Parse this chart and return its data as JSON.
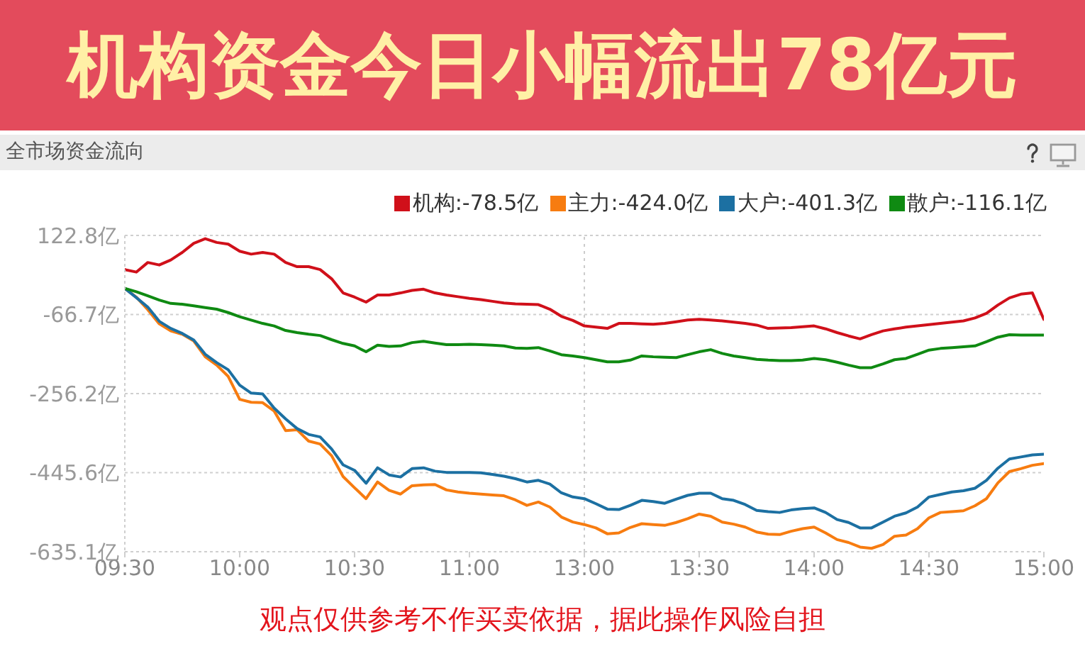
{
  "chart_data": {
    "type": "line",
    "title": "机构资金今日小幅流出78亿元",
    "subtitle": "全市场资金流向",
    "annotations": [
      "观点仅供参考不作买卖依据，据此操作风险自担"
    ],
    "categories": [
      "09:30",
      null,
      null,
      null,
      null,
      null,
      null,
      null,
      null,
      null,
      "10:00",
      null,
      null,
      null,
      null,
      null,
      null,
      null,
      null,
      null,
      "10:30",
      null,
      null,
      null,
      null,
      null,
      null,
      null,
      null,
      null,
      "11:00",
      null,
      null,
      null,
      null,
      null,
      null,
      null,
      null,
      null,
      "13:00",
      null,
      null,
      null,
      null,
      null,
      null,
      null,
      null,
      null,
      "13:30",
      null,
      null,
      null,
      null,
      null,
      null,
      null,
      null,
      null,
      "14:00",
      null,
      null,
      null,
      null,
      null,
      null,
      null,
      null,
      null,
      "14:30",
      null,
      null,
      null,
      null,
      null,
      null,
      null,
      null,
      null,
      "15:00"
    ],
    "series": [
      {
        "name": "机构:-78.5亿",
        "color": "#d0101a",
        "values": [
          41,
          35,
          58,
          52,
          64,
          82,
          104,
          115,
          106,
          102,
          85,
          78,
          82,
          78,
          58,
          48,
          48,
          41,
          19,
          -15,
          -25,
          -37,
          -20,
          -20,
          -15,
          -9,
          -6,
          -15,
          -20,
          -24,
          -28,
          -31,
          -35,
          -39,
          -41,
          -42,
          -43,
          -54,
          -71,
          -81,
          -94,
          -97,
          -100,
          -88,
          -88,
          -89,
          -90,
          -88,
          -84,
          -80,
          -78,
          -80,
          -82,
          -85,
          -88,
          -92,
          -100,
          -99,
          -98,
          -96,
          -94,
          -101,
          -110,
          -118,
          -125,
          -115,
          -106,
          -101,
          -97,
          -94,
          -91,
          -88,
          -85,
          -82,
          -75,
          -64,
          -44,
          -27,
          -18,
          -15,
          -78.5
        ]
      },
      {
        "name": "主力:-424.0亿",
        "color": "#f77c10",
        "values": [
          -4,
          -25,
          -55,
          -89,
          -106,
          -114,
          -130,
          -168,
          -188,
          -215,
          -270,
          -277,
          -278,
          -298,
          -345,
          -343,
          -370,
          -377,
          -405,
          -455,
          -482,
          -508,
          -468,
          -488,
          -497,
          -477,
          -475,
          -474,
          -487,
          -492,
          -495,
          -497,
          -499,
          -501,
          -511,
          -524,
          -516,
          -528,
          -552,
          -564,
          -570,
          -578,
          -592,
          -590,
          -577,
          -568,
          -570,
          -572,
          -565,
          -556,
          -545,
          -550,
          -564,
          -569,
          -576,
          -588,
          -593,
          -594,
          -586,
          -580,
          -576,
          -590,
          -606,
          -613,
          -624,
          -627,
          -618,
          -598,
          -595,
          -580,
          -554,
          -541,
          -539,
          -537,
          -525,
          -508,
          -470,
          -443,
          -436,
          -428,
          -424.0
        ]
      },
      {
        "name": "大户:-401.3亿",
        "color": "#1c70a2",
        "values": [
          -4,
          -26,
          -49,
          -83,
          -100,
          -112,
          -128,
          -162,
          -182,
          -199,
          -236,
          -255,
          -257,
          -291,
          -317,
          -340,
          -354,
          -360,
          -389,
          -427,
          -440,
          -471,
          -434,
          -451,
          -456,
          -436,
          -434,
          -442,
          -445,
          -445,
          -445,
          -446,
          -450,
          -454,
          -460,
          -468,
          -464,
          -473,
          -494,
          -504,
          -508,
          -520,
          -533,
          -534,
          -524,
          -512,
          -515,
          -519,
          -509,
          -500,
          -495,
          -495,
          -508,
          -512,
          -522,
          -536,
          -539,
          -541,
          -535,
          -532,
          -530,
          -541,
          -558,
          -565,
          -578,
          -578,
          -564,
          -550,
          -542,
          -528,
          -504,
          -498,
          -492,
          -489,
          -483,
          -464,
          -435,
          -413,
          -408,
          -403,
          -401.3
        ]
      },
      {
        "name": "散户:-116.1亿",
        "color": "#0f8a12",
        "values": [
          -4,
          -12,
          -22,
          -32,
          -40,
          -42,
          -46,
          -50,
          -54,
          -62,
          -72,
          -80,
          -88,
          -94,
          -105,
          -110,
          -114,
          -117,
          -127,
          -136,
          -142,
          -156,
          -140,
          -143,
          -142,
          -134,
          -131,
          -135,
          -139,
          -139,
          -138,
          -139,
          -140,
          -142,
          -147,
          -148,
          -146,
          -154,
          -163,
          -166,
          -170,
          -175,
          -180,
          -180,
          -176,
          -166,
          -168,
          -169,
          -170,
          -163,
          -156,
          -151,
          -160,
          -166,
          -170,
          -174,
          -176,
          -177,
          -177,
          -176,
          -172,
          -175,
          -181,
          -188,
          -194,
          -194,
          -185,
          -175,
          -172,
          -162,
          -152,
          -148,
          -146,
          -144,
          -142,
          -132,
          -121,
          -115,
          -116,
          -116,
          -116.1
        ]
      }
    ],
    "ylim": [
      -635.1,
      122.8
    ],
    "yticks": [
      {
        "value": 122.8,
        "label": "122.8亿"
      },
      {
        "value": -66.7,
        "label": "-66.7亿"
      },
      {
        "value": -256.2,
        "label": "-256.2亿"
      },
      {
        "value": -445.6,
        "label": "-445.6亿"
      },
      {
        "value": -635.1,
        "label": "-635.1亿"
      }
    ],
    "grid": "y",
    "legend": "top right",
    "line_style": "solid",
    "ref_lines": [
      {
        "axis": "x",
        "value": "13:00",
        "label": null,
        "color": "#cccccc",
        "line_style": "dotted"
      }
    ]
  }
}
